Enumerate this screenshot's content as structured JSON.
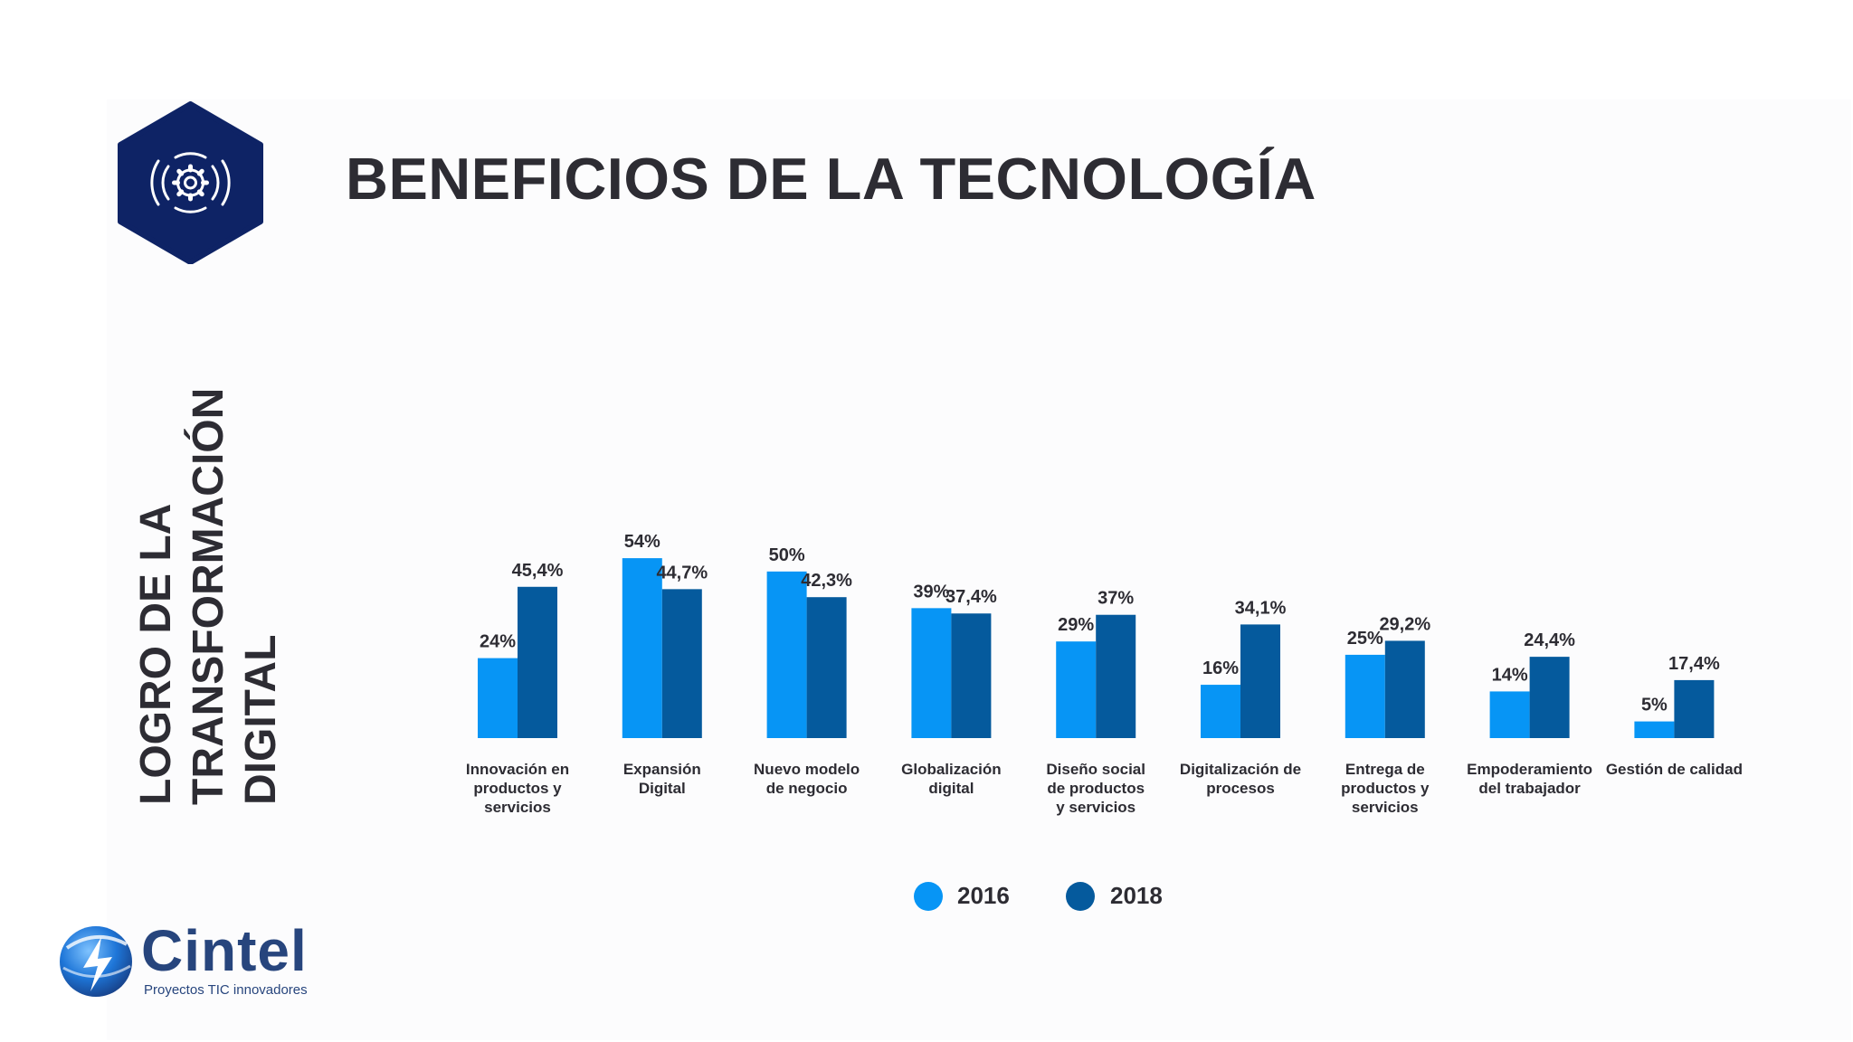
{
  "title": "BENEFICIOS DE LA TECNOLOGÍA",
  "side_title": [
    "LOGRO DE LA",
    "TRANSFORMACIÓN",
    "DIGITAL"
  ],
  "icons": {
    "header": "gear-icon",
    "brand": "cintel-logo-icon"
  },
  "brand": {
    "name": "Cintel",
    "tagline": "Proyectos TIC innovadores"
  },
  "colors": {
    "series_2016": "#0795f5",
    "series_2018": "#055a9d",
    "text": "#2d2c33",
    "brand": "#27457d",
    "hex": "#0e2365"
  },
  "chart_data": {
    "type": "bar",
    "title": "",
    "xlabel": "",
    "ylabel": "",
    "ylim": [
      0,
      60
    ],
    "grid": false,
    "legend": "bottom",
    "categories": [
      [
        "Innovación en",
        "productos y",
        "servicios"
      ],
      [
        "Expansión",
        "Digital"
      ],
      [
        "Nuevo modelo",
        "de negocio"
      ],
      [
        "Globalización",
        "digital"
      ],
      [
        "Diseño social",
        "de productos",
        "y servicios"
      ],
      [
        "Digitalización de",
        "procesos"
      ],
      [
        "Entrega de",
        "productos y",
        "servicios"
      ],
      [
        "Empoderamiento",
        "del trabajador"
      ],
      [
        "Gestión de calidad"
      ]
    ],
    "series": [
      {
        "name": "2016",
        "values": [
          24,
          54,
          50,
          39,
          29,
          16,
          25,
          14,
          5
        ],
        "labels": [
          "24%",
          "54%",
          "50%",
          "39%",
          "29%",
          "16%",
          "25%",
          "14%",
          "5%"
        ]
      },
      {
        "name": "2018",
        "values": [
          45.4,
          44.7,
          42.3,
          37.4,
          37,
          34.1,
          29.2,
          24.4,
          17.4
        ],
        "labels": [
          "45,4%",
          "44,7%",
          "42,3%",
          "37,4%",
          "37%",
          "34,1%",
          "29,2%",
          "24,4%",
          "17,4%"
        ]
      }
    ]
  }
}
